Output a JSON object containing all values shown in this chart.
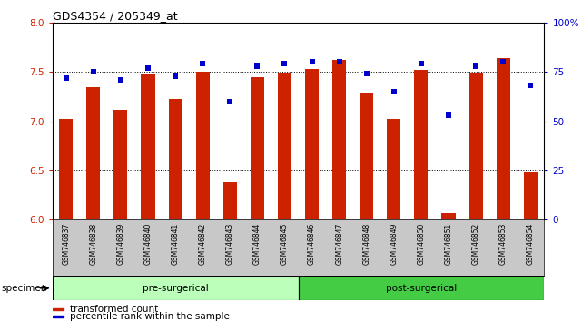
{
  "title": "GDS4354 / 205349_at",
  "samples": [
    "GSM746837",
    "GSM746838",
    "GSM746839",
    "GSM746840",
    "GSM746841",
    "GSM746842",
    "GSM746843",
    "GSM746844",
    "GSM746845",
    "GSM746846",
    "GSM746847",
    "GSM746848",
    "GSM746849",
    "GSM746850",
    "GSM746851",
    "GSM746852",
    "GSM746853",
    "GSM746854"
  ],
  "bar_values": [
    7.02,
    7.35,
    7.12,
    7.47,
    7.23,
    7.5,
    6.38,
    7.45,
    7.49,
    7.53,
    7.62,
    7.28,
    7.02,
    7.52,
    6.07,
    7.48,
    7.64,
    6.48
  ],
  "percentile_values": [
    72,
    75,
    71,
    77,
    73,
    79,
    60,
    78,
    79,
    80,
    80,
    74,
    65,
    79,
    53,
    78,
    80,
    68
  ],
  "bar_color": "#cc2200",
  "dot_color": "#0000cc",
  "ylim_left": [
    6.0,
    8.0
  ],
  "ylim_right": [
    0,
    100
  ],
  "yticks_left": [
    6.0,
    6.5,
    7.0,
    7.5,
    8.0
  ],
  "yticks_right": [
    0,
    25,
    50,
    75,
    100
  ],
  "ytick_labels_right": [
    "0",
    "25",
    "50",
    "75",
    "100%"
  ],
  "grid_values": [
    6.5,
    7.0,
    7.5
  ],
  "n_pre": 9,
  "n_post": 9,
  "pre_label": "pre-surgerical",
  "post_label": "post-surgerical",
  "pre_color": "#bbffbb",
  "post_color": "#44cc44",
  "specimen_label": "specimen",
  "legend_bar_label": "transformed count",
  "legend_dot_label": "percentile rank within the sample",
  "bg_color": "#ffffff",
  "tick_label_bg": "#c8c8c8",
  "bar_width": 0.5
}
